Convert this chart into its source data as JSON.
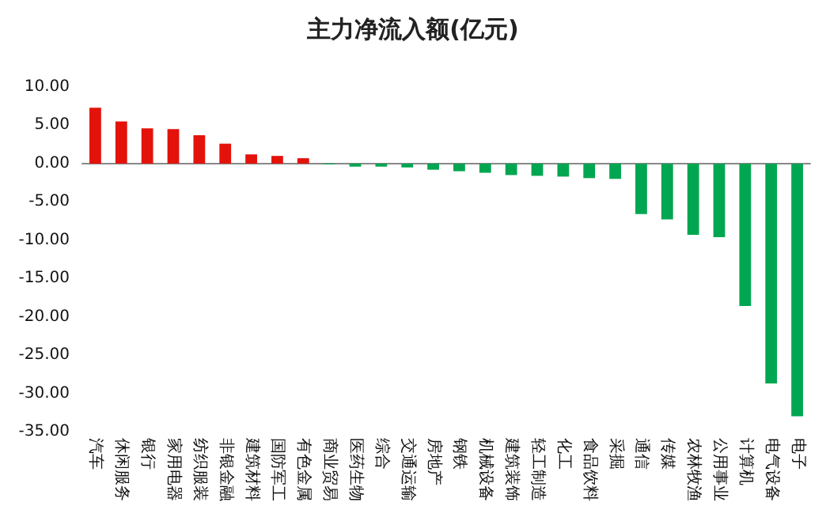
{
  "chart_data": {
    "type": "bar",
    "title": "主力净流入额(亿元)",
    "categories": [
      "汽车",
      "休闲服务",
      "银行",
      "家用电器",
      "纺织服装",
      "非银金融",
      "建筑材料",
      "国防军工",
      "有色金属",
      "商业贸易",
      "医药生物",
      "综合",
      "交通运输",
      "房地产",
      "钢铁",
      "机械设备",
      "建筑装饰",
      "轻工制造",
      "化工",
      "食品饮料",
      "采掘",
      "通信",
      "传媒",
      "农林牧渔",
      "公用事业",
      "计算机",
      "电气设备",
      "电子"
    ],
    "values": [
      7.3,
      5.5,
      4.6,
      4.5,
      3.7,
      2.6,
      1.2,
      1.0,
      0.7,
      -0.1,
      -0.4,
      -0.4,
      -0.5,
      -0.8,
      -1.0,
      -1.2,
      -1.5,
      -1.6,
      -1.7,
      -1.9,
      -2.0,
      -6.6,
      -7.3,
      -9.3,
      -9.6,
      -18.6,
      -28.7,
      -33.0
    ],
    "colors": [
      "#e3120b",
      "#e3120b",
      "#e3120b",
      "#e3120b",
      "#e3120b",
      "#e3120b",
      "#e3120b",
      "#e3120b",
      "#e3120b",
      "#00a651",
      "#00a651",
      "#00a651",
      "#00a651",
      "#00a651",
      "#00a651",
      "#00a651",
      "#00a651",
      "#00a651",
      "#00a651",
      "#00a651",
      "#00a651",
      "#00a651",
      "#00a651",
      "#00a651",
      "#00a651",
      "#00a651",
      "#00a651",
      "#00a651"
    ],
    "ylim": [
      -35,
      10
    ],
    "yticks": [
      {
        "value": -35,
        "label": "-35.00"
      },
      {
        "value": -30,
        "label": "-30.00"
      },
      {
        "value": -25,
        "label": "-25.00"
      },
      {
        "value": -20,
        "label": "-20.00"
      },
      {
        "value": -15,
        "label": "-15.00"
      },
      {
        "value": -10,
        "label": "-10.00"
      },
      {
        "value": -5,
        "label": "-5.00"
      },
      {
        "value": 0,
        "label": "0.00"
      },
      {
        "value": 5,
        "label": "5.00"
      },
      {
        "value": 10,
        "label": "10.00"
      }
    ]
  }
}
